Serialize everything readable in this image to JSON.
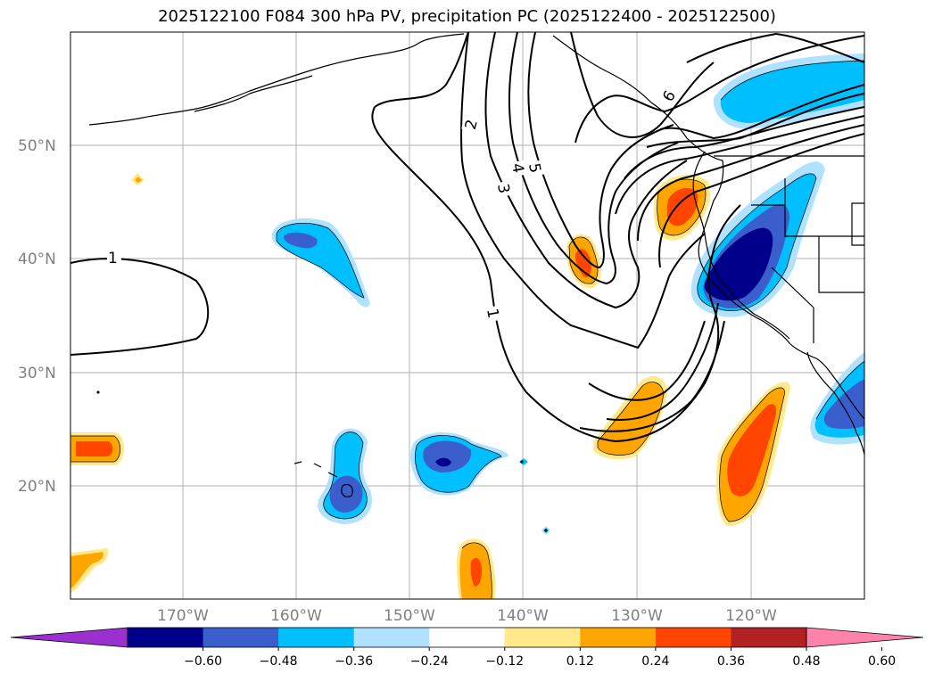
{
  "title": "2025122100 F084 300 hPa PV, precipitation PC (2025122400 - 2025122500)",
  "map": {
    "lat_labels": [
      "50°N",
      "40°N",
      "30°N",
      "20°N"
    ],
    "lon_labels": [
      "170°W",
      "160°W",
      "150°W",
      "140°W",
      "130°W",
      "120°W"
    ]
  },
  "contours": {
    "labels": [
      "1",
      "2",
      "3",
      "4",
      "5",
      "6",
      "1"
    ]
  },
  "colorbar": {
    "ticks": [
      "−0.60",
      "−0.48",
      "−0.36",
      "−0.24",
      "−0.12",
      "0.12",
      "0.24",
      "0.36",
      "0.48",
      "0.60"
    ],
    "colors": [
      "#9b30d0",
      "#00008b",
      "#3a5fcd",
      "#00bfff",
      "#b0e2ff",
      "#ffffff",
      "#ffe98a",
      "#ffa500",
      "#ff4500",
      "#b22222",
      "#ff82ab"
    ]
  }
}
